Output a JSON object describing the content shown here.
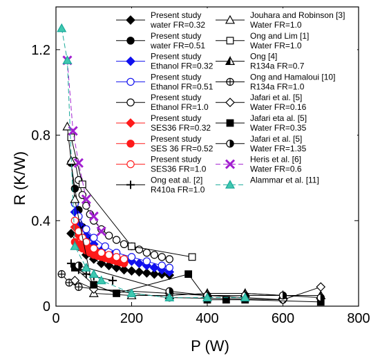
{
  "chart_data": {
    "type": "scatter",
    "xlabel": "P (W)",
    "ylabel": "R  (K/W)",
    "xlim": [
      0,
      800
    ],
    "ylim": [
      0,
      1.4
    ],
    "xticks": [
      "0",
      "200",
      "400",
      "600",
      "800"
    ],
    "yticks": [
      "0",
      "0.4",
      "0.8",
      "1.2"
    ],
    "grid": false,
    "legend_position": "top-right, inside, two columns",
    "series": [
      {
        "label1": "Present study",
        "label2": "water FR=0.32",
        "marker": "diamond",
        "color": "#000000",
        "fill": "#000000",
        "x": [
          40,
          60,
          80,
          100,
          120,
          140,
          160,
          180,
          200,
          220,
          240,
          260,
          280,
          300
        ],
        "y": [
          0.34,
          0.28,
          0.24,
          0.22,
          0.2,
          0.19,
          0.18,
          0.17,
          0.165,
          0.16,
          0.155,
          0.15,
          0.15,
          0.145
        ]
      },
      {
        "label1": "Present study",
        "label2": "water FR=0.51",
        "marker": "circle",
        "color": "#000000",
        "fill": "#000000",
        "x": [
          40,
          50,
          60,
          70,
          80,
          100,
          120
        ],
        "y": [
          0.67,
          0.55,
          0.45,
          0.37,
          0.32,
          0.27,
          0.24
        ]
      },
      {
        "label1": "Present study",
        "label2": "Ethanol FR=0.32",
        "marker": "diamond",
        "color": "#1010ee",
        "fill": "#1010ee",
        "x": [
          50,
          60,
          80,
          100,
          120,
          150,
          180,
          200,
          220,
          240,
          260,
          280,
          300
        ],
        "y": [
          0.44,
          0.38,
          0.33,
          0.29,
          0.26,
          0.24,
          0.22,
          0.21,
          0.2,
          0.19,
          0.18,
          0.17,
          0.16
        ]
      },
      {
        "label1": "Present study",
        "label2": "Ethanol FR=0.51",
        "marker": "circle",
        "color": "#1010ee",
        "fill": "none",
        "x": [
          50,
          60,
          80,
          100,
          130,
          160,
          200,
          240,
          280,
          300
        ],
        "y": [
          0.48,
          0.42,
          0.36,
          0.32,
          0.28,
          0.25,
          0.23,
          0.21,
          0.19,
          0.18
        ]
      },
      {
        "label1": "Present study",
        "label2": "Ethanol FR=1.0",
        "marker": "circle",
        "color": "#000000",
        "fill": "none",
        "x": [
          50,
          60,
          70,
          80,
          90,
          100,
          120,
          140,
          160,
          180,
          200,
          220,
          240,
          260,
          280,
          300
        ],
        "y": [
          0.68,
          0.59,
          0.52,
          0.47,
          0.43,
          0.4,
          0.36,
          0.33,
          0.31,
          0.29,
          0.28,
          0.265,
          0.25,
          0.24,
          0.23,
          0.22
        ]
      },
      {
        "label1": "Present study",
        "label2": "SES36 FR=0.32",
        "marker": "diamond",
        "color": "#ff1a1a",
        "fill": "#ff1a1a",
        "x": [
          50,
          60,
          70,
          80,
          90,
          100,
          110,
          120,
          130,
          140,
          150,
          160,
          170,
          180
        ],
        "y": [
          0.37,
          0.33,
          0.3,
          0.28,
          0.27,
          0.26,
          0.25,
          0.24,
          0.235,
          0.23,
          0.22,
          0.215,
          0.21,
          0.205
        ]
      },
      {
        "label1": "Present study",
        "label2": "SES 36 FR=0.52",
        "marker": "circle",
        "color": "#ff1a1a",
        "fill": "#ff1a1a",
        "x": [
          50,
          60,
          70,
          80,
          90,
          100,
          110,
          120,
          130,
          140,
          150,
          160,
          170,
          180
        ],
        "y": [
          0.3,
          0.28,
          0.27,
          0.26,
          0.25,
          0.24,
          0.235,
          0.23,
          0.225,
          0.22,
          0.215,
          0.21,
          0.205,
          0.2
        ]
      },
      {
        "label1": "Present study",
        "label2": "SES36 FR=1.0",
        "marker": "circle",
        "color": "#ff1a1a",
        "fill": "none",
        "x": [
          50,
          60,
          70,
          80,
          100,
          120,
          140,
          160,
          180
        ],
        "y": [
          0.4,
          0.35,
          0.32,
          0.3,
          0.27,
          0.25,
          0.24,
          0.23,
          0.22
        ]
      },
      {
        "label1": "Ong eat al. [2]",
        "label2": "R410a FR=1.0",
        "marker": "plus",
        "color": "#000000",
        "fill": "none",
        "x": [
          40,
          60,
          80,
          100,
          150
        ],
        "y": [
          0.2,
          0.17,
          0.15,
          0.14,
          0.12
        ]
      },
      {
        "label1": "Jouhara and Robinson [3]",
        "label2": "Water FR=1.0",
        "marker": "triangle",
        "color": "#000000",
        "fill": "none",
        "x": [
          30,
          40,
          50,
          100,
          200,
          300,
          400,
          500,
          600,
          700
        ],
        "y": [
          0.84,
          0.68,
          0.5,
          0.06,
          0.05,
          0.05,
          0.06,
          0.06,
          0.05,
          0.05
        ]
      },
      {
        "label1": "Ong and Lim [1]",
        "label2": "Water FR=1.0",
        "marker": "square",
        "color": "#000000",
        "fill": "none",
        "x": [
          40,
          70,
          200,
          360
        ],
        "y": [
          0.79,
          0.57,
          0.28,
          0.23
        ]
      },
      {
        "label1": "Ong [4]",
        "label2": "R134a FR=0.7",
        "marker": "halftri",
        "color": "#000000",
        "fill": "none",
        "x": [
          400,
          500,
          600,
          700
        ],
        "y": [
          0.06,
          0.06,
          0.05,
          0.05
        ]
      },
      {
        "label1": "Ong and Hamaloui [10]",
        "label2": "R134a FR=1.0",
        "marker": "circleplus",
        "color": "#000000",
        "fill": "none",
        "x": [
          15,
          35,
          60,
          300,
          600
        ],
        "y": [
          0.15,
          0.11,
          0.09,
          0.04,
          0.03
        ]
      },
      {
        "label1": "Jafari et al. [5]",
        "label2": "Water FR=0.16",
        "marker": "diamond",
        "color": "#000000",
        "fill": "none",
        "x": [
          50,
          100,
          300,
          600,
          700
        ],
        "y": [
          0.12,
          0.08,
          0.06,
          0.03,
          0.09
        ]
      },
      {
        "label1": "Jafari eta al. [5]",
        "label2": "Water FR=0.35",
        "marker": "square",
        "color": "#000000",
        "fill": "#000000",
        "x": [
          50,
          100,
          160,
          350,
          400,
          450,
          500,
          700
        ],
        "y": [
          0.18,
          0.1,
          0.06,
          0.15,
          0.03,
          0.03,
          0.03,
          0.02
        ]
      },
      {
        "label1": "Jafari et al. [5]",
        "label2": "Water FR=1.35",
        "marker": "halfcircle",
        "color": "#000000",
        "fill": "none",
        "x": [
          60,
          300,
          400,
          500,
          600,
          700
        ],
        "y": [
          0.19,
          0.07,
          0.05,
          0.05,
          0.05,
          0.04
        ]
      },
      {
        "label1": "Heris et al. [6]",
        "label2": "Water FR=0.6",
        "marker": "x",
        "color": "#a21fd0",
        "fill": "none",
        "x": [
          30,
          45,
          60,
          80,
          100,
          120
        ],
        "y": [
          1.15,
          0.82,
          0.67,
          0.5,
          0.42,
          0.35
        ]
      },
      {
        "label1": "Alammar et al. [11]",
        "label2": "",
        "marker": "triangle",
        "color": "#1aa99a",
        "fill": "#3fc8b0",
        "x": [
          15,
          30,
          50,
          80,
          100,
          120,
          200,
          300,
          400,
          500
        ],
        "y": [
          1.3,
          1.15,
          0.28,
          0.18,
          0.15,
          0.12,
          0.06,
          0.04,
          0.04,
          0.04
        ]
      }
    ]
  }
}
